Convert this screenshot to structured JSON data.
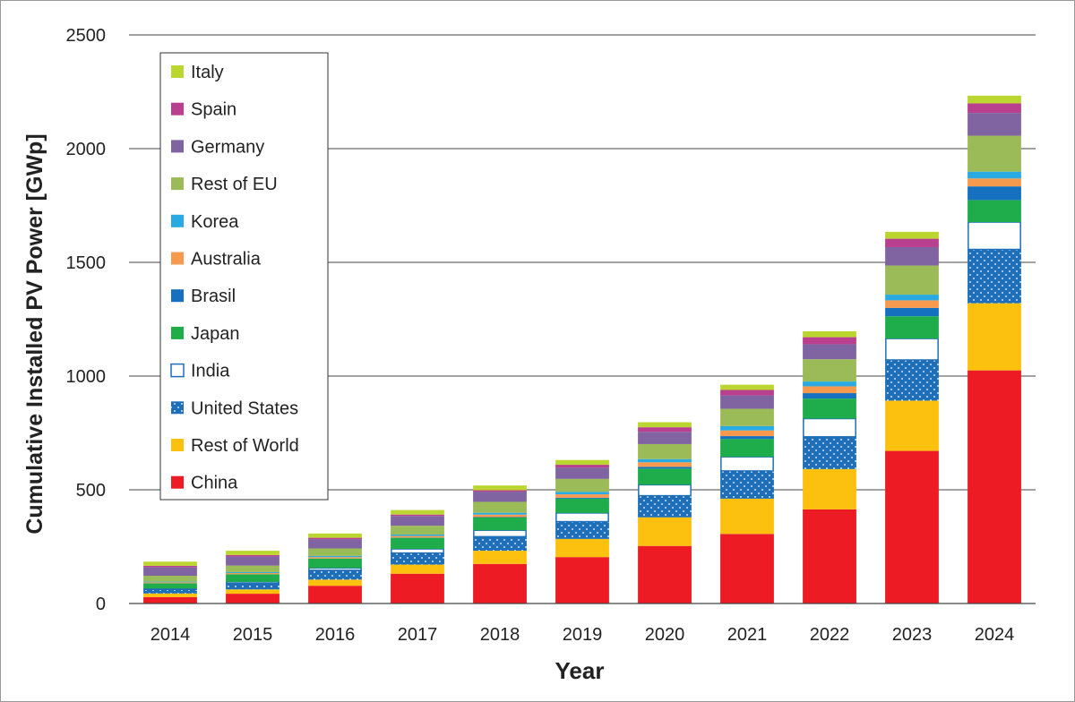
{
  "chart_data": {
    "type": "bar",
    "stacked": true,
    "title": "",
    "xlabel": "Year",
    "ylabel": "Cumulative Installed PV Power [GWp]",
    "ylim": [
      0,
      2500
    ],
    "yticks": [
      0,
      500,
      1000,
      1500,
      2000,
      2500
    ],
    "grid": true,
    "legend_position": "top-left",
    "categories": [
      "2014",
      "2015",
      "2016",
      "2017",
      "2018",
      "2019",
      "2020",
      "2021",
      "2022",
      "2023",
      "2024"
    ],
    "series": [
      {
        "name": "China",
        "color": "#ed1c24",
        "pattern": "solid",
        "values": [
          28,
          43,
          78,
          131,
          174,
          204,
          253,
          306,
          414,
          671,
          1025
        ]
      },
      {
        "name": "Rest of World",
        "color": "#fcc10e",
        "pattern": "solid",
        "values": [
          16,
          19,
          27,
          40,
          58,
          80,
          126,
          155,
          177,
          221,
          295
        ]
      },
      {
        "name": "United States",
        "color": "#1f6fb8",
        "pattern": "dots",
        "values": [
          18,
          26,
          41,
          51,
          62,
          76,
          95,
          122,
          142,
          179,
          237
        ]
      },
      {
        "name": "India",
        "color": "#ffffff",
        "border": "#1f6fb8",
        "pattern": "outline",
        "values": [
          4,
          7,
          10,
          18,
          28,
          38,
          48,
          62,
          80,
          94,
          120
        ]
      },
      {
        "name": "Japan",
        "color": "#1fad4b",
        "pattern": "solid",
        "values": [
          23,
          34,
          42,
          49,
          56,
          63,
          71,
          78,
          88,
          98,
          97
        ]
      },
      {
        "name": "Brasil",
        "color": "#1571c0",
        "pattern": "solid",
        "values": [
          0,
          0,
          0,
          1,
          2,
          4,
          8,
          13,
          24,
          37,
          60
        ]
      },
      {
        "name": "Australia",
        "color": "#f89a4d",
        "pattern": "solid",
        "values": [
          4,
          5,
          6,
          7,
          11,
          15,
          20,
          25,
          30,
          33,
          35
        ]
      },
      {
        "name": "Korea",
        "color": "#29aae2",
        "pattern": "solid",
        "values": [
          3,
          4,
          5,
          6,
          8,
          11,
          14,
          19,
          21,
          25,
          30
        ]
      },
      {
        "name": "Rest of EU",
        "color": "#9bbb59",
        "pattern": "solid",
        "values": [
          26,
          29,
          33,
          39,
          48,
          57,
          66,
          76,
          98,
          128,
          158
        ]
      },
      {
        "name": "Germany",
        "color": "#8064a2",
        "pattern": "solid",
        "values": [
          38,
          40,
          41,
          43,
          45,
          50,
          54,
          59,
          66,
          81,
          100
        ]
      },
      {
        "name": "Spain",
        "color": "#b9408e",
        "pattern": "solid",
        "values": [
          6,
          6,
          6,
          6,
          6,
          12,
          20,
          24,
          31,
          37,
          42
        ]
      },
      {
        "name": "Italy",
        "color": "#bcd631",
        "pattern": "solid",
        "values": [
          18,
          19,
          19,
          20,
          21,
          21,
          22,
          23,
          26,
          30,
          34
        ]
      }
    ]
  }
}
